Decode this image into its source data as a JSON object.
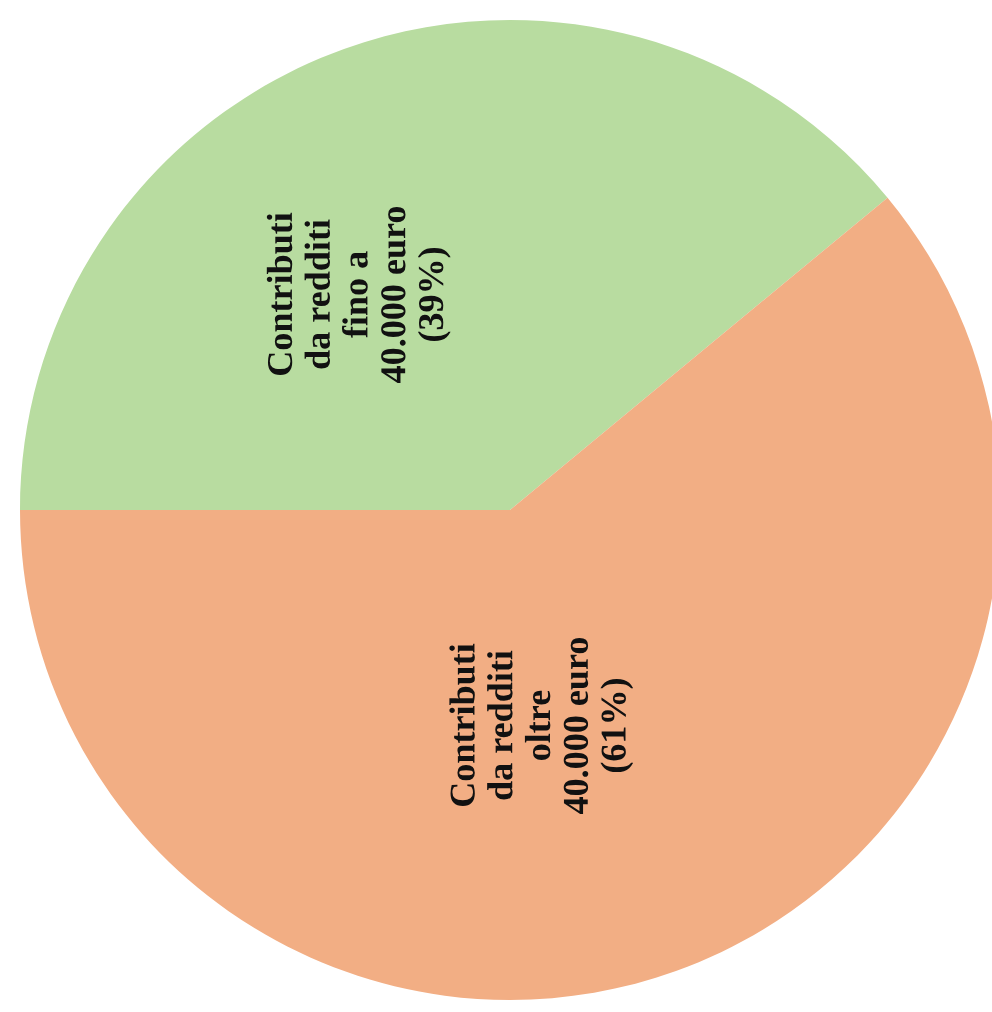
{
  "chart_data": {
    "type": "pie",
    "categories": [
      "Contributi\nda redditi\nfino a\n40.000 euro",
      "Contributi\nda redditi\noltre\n40.000 euro"
    ],
    "values": [
      39,
      61
    ],
    "value_labels": [
      "(39%)",
      "(61%)"
    ],
    "colors": [
      "#b8dca0",
      "#f2ae84"
    ]
  }
}
